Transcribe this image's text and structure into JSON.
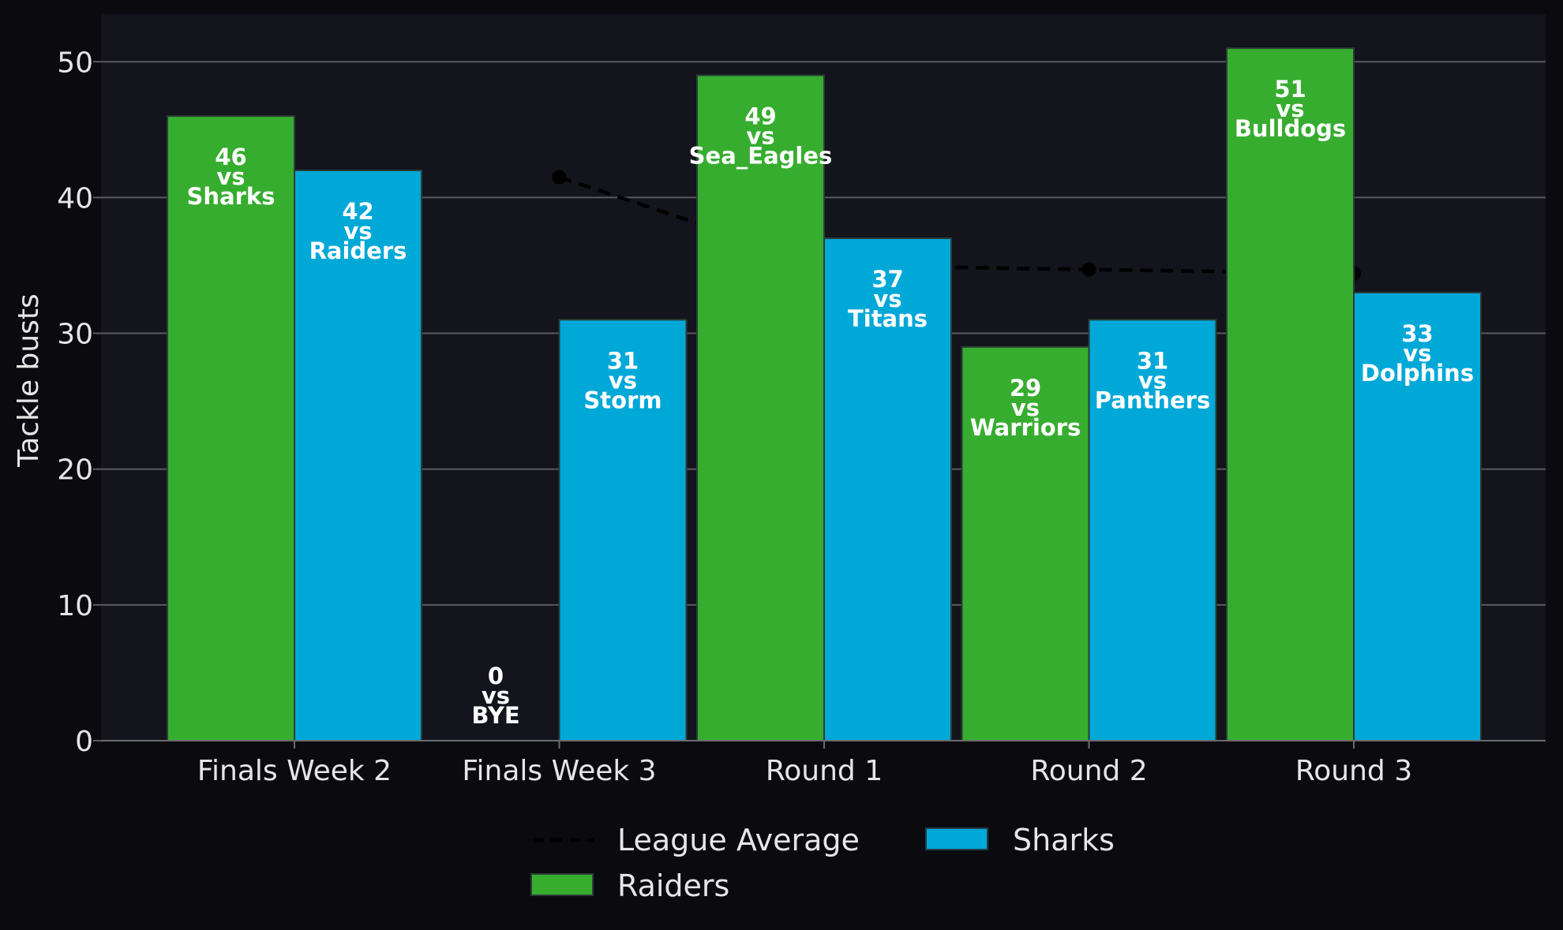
{
  "chart_data": {
    "type": "bar",
    "title": "",
    "xlabel": "",
    "ylabel": "Tackle busts",
    "ylim": [
      0,
      53.5
    ],
    "yticks": [
      0,
      10,
      20,
      30,
      40,
      50
    ],
    "grid": "horizontal",
    "legend_placement": "bottom-center",
    "categories": [
      "Finals Week 2",
      "Finals Week 3",
      "Round 1",
      "Round 2",
      "Round 3"
    ],
    "series": [
      {
        "name": "Raiders",
        "color": "#37ad30",
        "values": [
          46,
          0,
          49,
          29,
          51
        ],
        "opponents": [
          "Sharks",
          "BYE",
          "Sea_Eagles",
          "Warriors",
          "Bulldogs"
        ]
      },
      {
        "name": "Sharks",
        "color": "#00a8d8",
        "values": [
          42,
          31,
          37,
          31,
          33
        ],
        "opponents": [
          "Raiders",
          "Storm",
          "Titans",
          "Panthers",
          "Dolphins"
        ]
      }
    ],
    "line": {
      "name": "League Average",
      "color": "#000000",
      "style": "dashed",
      "values": [
        null,
        41.5,
        35,
        34.7,
        34.4
      ]
    },
    "vs_word": "vs"
  }
}
